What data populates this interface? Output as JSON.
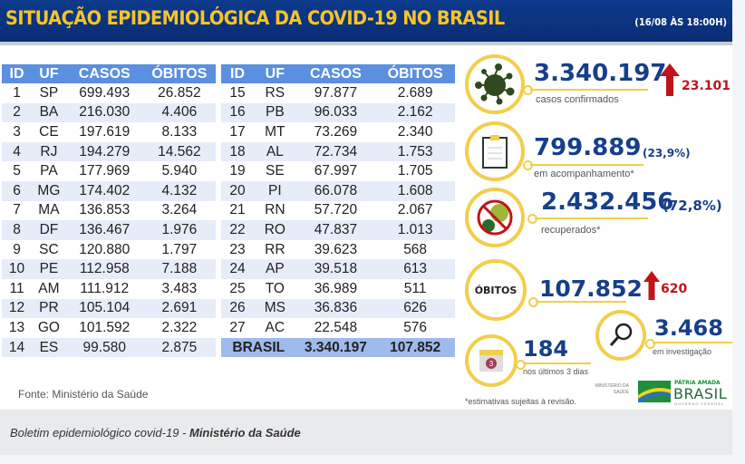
{
  "banner": {
    "title": "SITUAÇÃO EPIDEMIOLÓGICA DA COVID-19 NO BRASIL",
    "date": "(16/08 ÀS 18:00H)"
  },
  "table": {
    "headers": [
      "ID",
      "UF",
      "CASOS",
      "ÓBITOS"
    ],
    "left": [
      [
        "1",
        "SP",
        "699.493",
        "26.852"
      ],
      [
        "2",
        "BA",
        "216.030",
        "4.406"
      ],
      [
        "3",
        "CE",
        "197.619",
        "8.133"
      ],
      [
        "4",
        "RJ",
        "194.279",
        "14.562"
      ],
      [
        "5",
        "PA",
        "177.969",
        "5.940"
      ],
      [
        "6",
        "MG",
        "174.402",
        "4.132"
      ],
      [
        "7",
        "MA",
        "136.853",
        "3.264"
      ],
      [
        "8",
        "DF",
        "136.467",
        "1.976"
      ],
      [
        "9",
        "SC",
        "120.880",
        "1.797"
      ],
      [
        "10",
        "PE",
        "112.958",
        "7.188"
      ],
      [
        "11",
        "AM",
        "111.912",
        "3.483"
      ],
      [
        "12",
        "PR",
        "105.104",
        "2.691"
      ],
      [
        "13",
        "GO",
        "101.592",
        "2.322"
      ],
      [
        "14",
        "ES",
        "99.580",
        "2.875"
      ]
    ],
    "right": [
      [
        "15",
        "RS",
        "97.877",
        "2.689"
      ],
      [
        "16",
        "PB",
        "96.033",
        "2.162"
      ],
      [
        "17",
        "MT",
        "73.269",
        "2.340"
      ],
      [
        "18",
        "AL",
        "72.734",
        "1.753"
      ],
      [
        "19",
        "SE",
        "67.997",
        "1.705"
      ],
      [
        "20",
        "PI",
        "66.078",
        "1.608"
      ],
      [
        "21",
        "RN",
        "57.720",
        "2.067"
      ],
      [
        "22",
        "RO",
        "47.837",
        "1.013"
      ],
      [
        "23",
        "RR",
        "39.623",
        "568"
      ],
      [
        "24",
        "AP",
        "39.518",
        "613"
      ],
      [
        "25",
        "TO",
        "36.989",
        "511"
      ],
      [
        "26",
        "MS",
        "36.836",
        "626"
      ],
      [
        "27",
        "AC",
        "22.548",
        "576"
      ]
    ],
    "total": {
      "label": "BRASIL",
      "casos": "3.340.197",
      "obitos": "107.852"
    }
  },
  "fonte": "Fonte: Ministério da Saúde",
  "stats": {
    "confirmados": {
      "value": "3.340.197",
      "label": "casos confirmados",
      "delta": "23.101",
      "icon": "virus-icon"
    },
    "acompanhamento": {
      "value": "799.889",
      "pct": "(23,9%)",
      "label": "em acompanhamento*",
      "icon": "clipboard-icon"
    },
    "recuperados": {
      "value": "2.432.456",
      "pct": "(72,8%)",
      "label": "recuperados*",
      "icon": "no-virus-icon"
    },
    "obitos": {
      "badge": "ÓBITOS",
      "value": "107.852",
      "delta": "620"
    },
    "ultimos": {
      "value": "184",
      "label": "nos últimos 3 dias",
      "icon": "calendar-icon",
      "icon_digit": "3"
    },
    "investigacao": {
      "value": "3.468",
      "label": "em investigação",
      "icon": "magnifier-icon"
    }
  },
  "footnote": "*estimativas sujeitas à revisão.",
  "logos": {
    "ministerio": "MINISTÉRIO DA SAÚDE",
    "patria": "PÁTRIA AMADA",
    "brasil": "BRASIL",
    "governo": "GOVERNO FEDERAL"
  },
  "caption": {
    "prefix": "Boletim epidemiológico covid-19 - ",
    "bold": "Ministério da Saúde"
  },
  "colors": {
    "banner": "#0d3a8c",
    "title": "#f6c428",
    "header": "#5b8fdf",
    "accent_ring": "#f1cf4c",
    "number": "#163f8a",
    "up": "#c0141b"
  }
}
